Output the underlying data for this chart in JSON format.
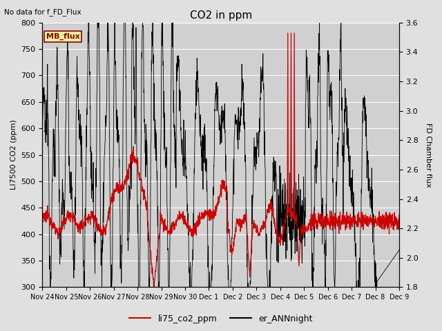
{
  "title": "CO2 in ppm",
  "title_note": "No data for f_FD_Flux",
  "ylabel_left": "LI7500 CO2 (ppm)",
  "ylabel_right": "FD Chamber flux",
  "ylim_left": [
    300,
    800
  ],
  "ylim_right": [
    1.8,
    3.6
  ],
  "yticks_left": [
    300,
    350,
    400,
    450,
    500,
    550,
    600,
    650,
    700,
    750,
    800
  ],
  "yticks_right": [
    1.8,
    2.0,
    2.2,
    2.4,
    2.6,
    2.8,
    3.0,
    3.2,
    3.4,
    3.6
  ],
  "xtick_labels": [
    "Nov 24",
    "Nov 25",
    "Nov 26",
    "Nov 27",
    "Nov 28",
    "Nov 29",
    "Nov 30",
    "Dec 1",
    "Dec 2",
    "Dec 3",
    "Dec 4",
    "Dec 5",
    "Dec 6",
    "Dec 7",
    "Dec 8",
    "Dec 9"
  ],
  "legend_label_red": "li75_co2_ppm",
  "legend_label_black": "er_ANNnight",
  "legend_box_label": "MB_flux",
  "background_color": "#e0e0e0",
  "plot_bg_color": "#d0d0d0",
  "grid_color": "#ffffff",
  "line_color_red": "#cc0000",
  "line_color_black": "#000000",
  "figsize": [
    6.4,
    4.8
  ],
  "dpi": 100
}
